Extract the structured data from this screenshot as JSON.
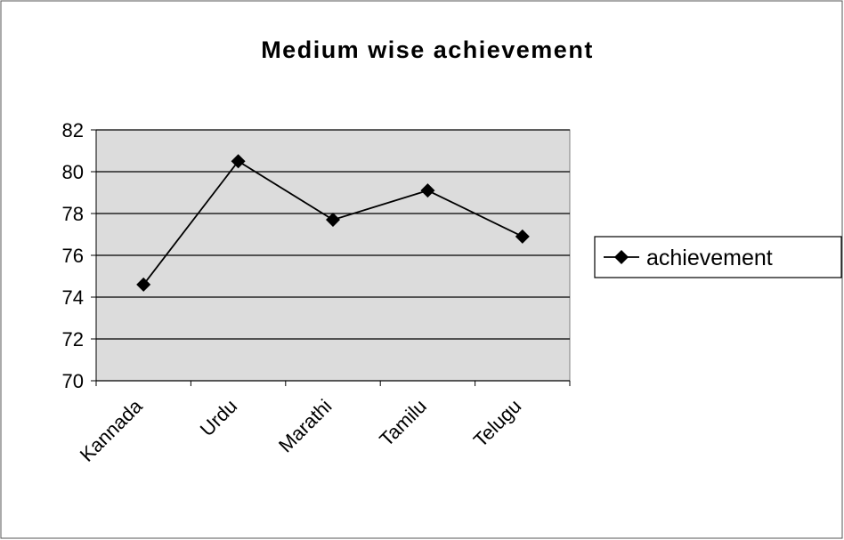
{
  "chart_data": {
    "type": "line",
    "title": "Medium wise achievement",
    "categories": [
      "Kannada",
      "Urdu",
      "Marathi",
      "Tamilu",
      "Telugu"
    ],
    "series": [
      {
        "name": "achievement",
        "color": "#000000",
        "values": [
          74.6,
          80.5,
          77.7,
          79.1,
          76.9
        ]
      }
    ],
    "ylim": [
      70,
      82
    ],
    "yticks": [
      70,
      72,
      74,
      76,
      78,
      80,
      82
    ],
    "grid": true,
    "legend": "right"
  }
}
